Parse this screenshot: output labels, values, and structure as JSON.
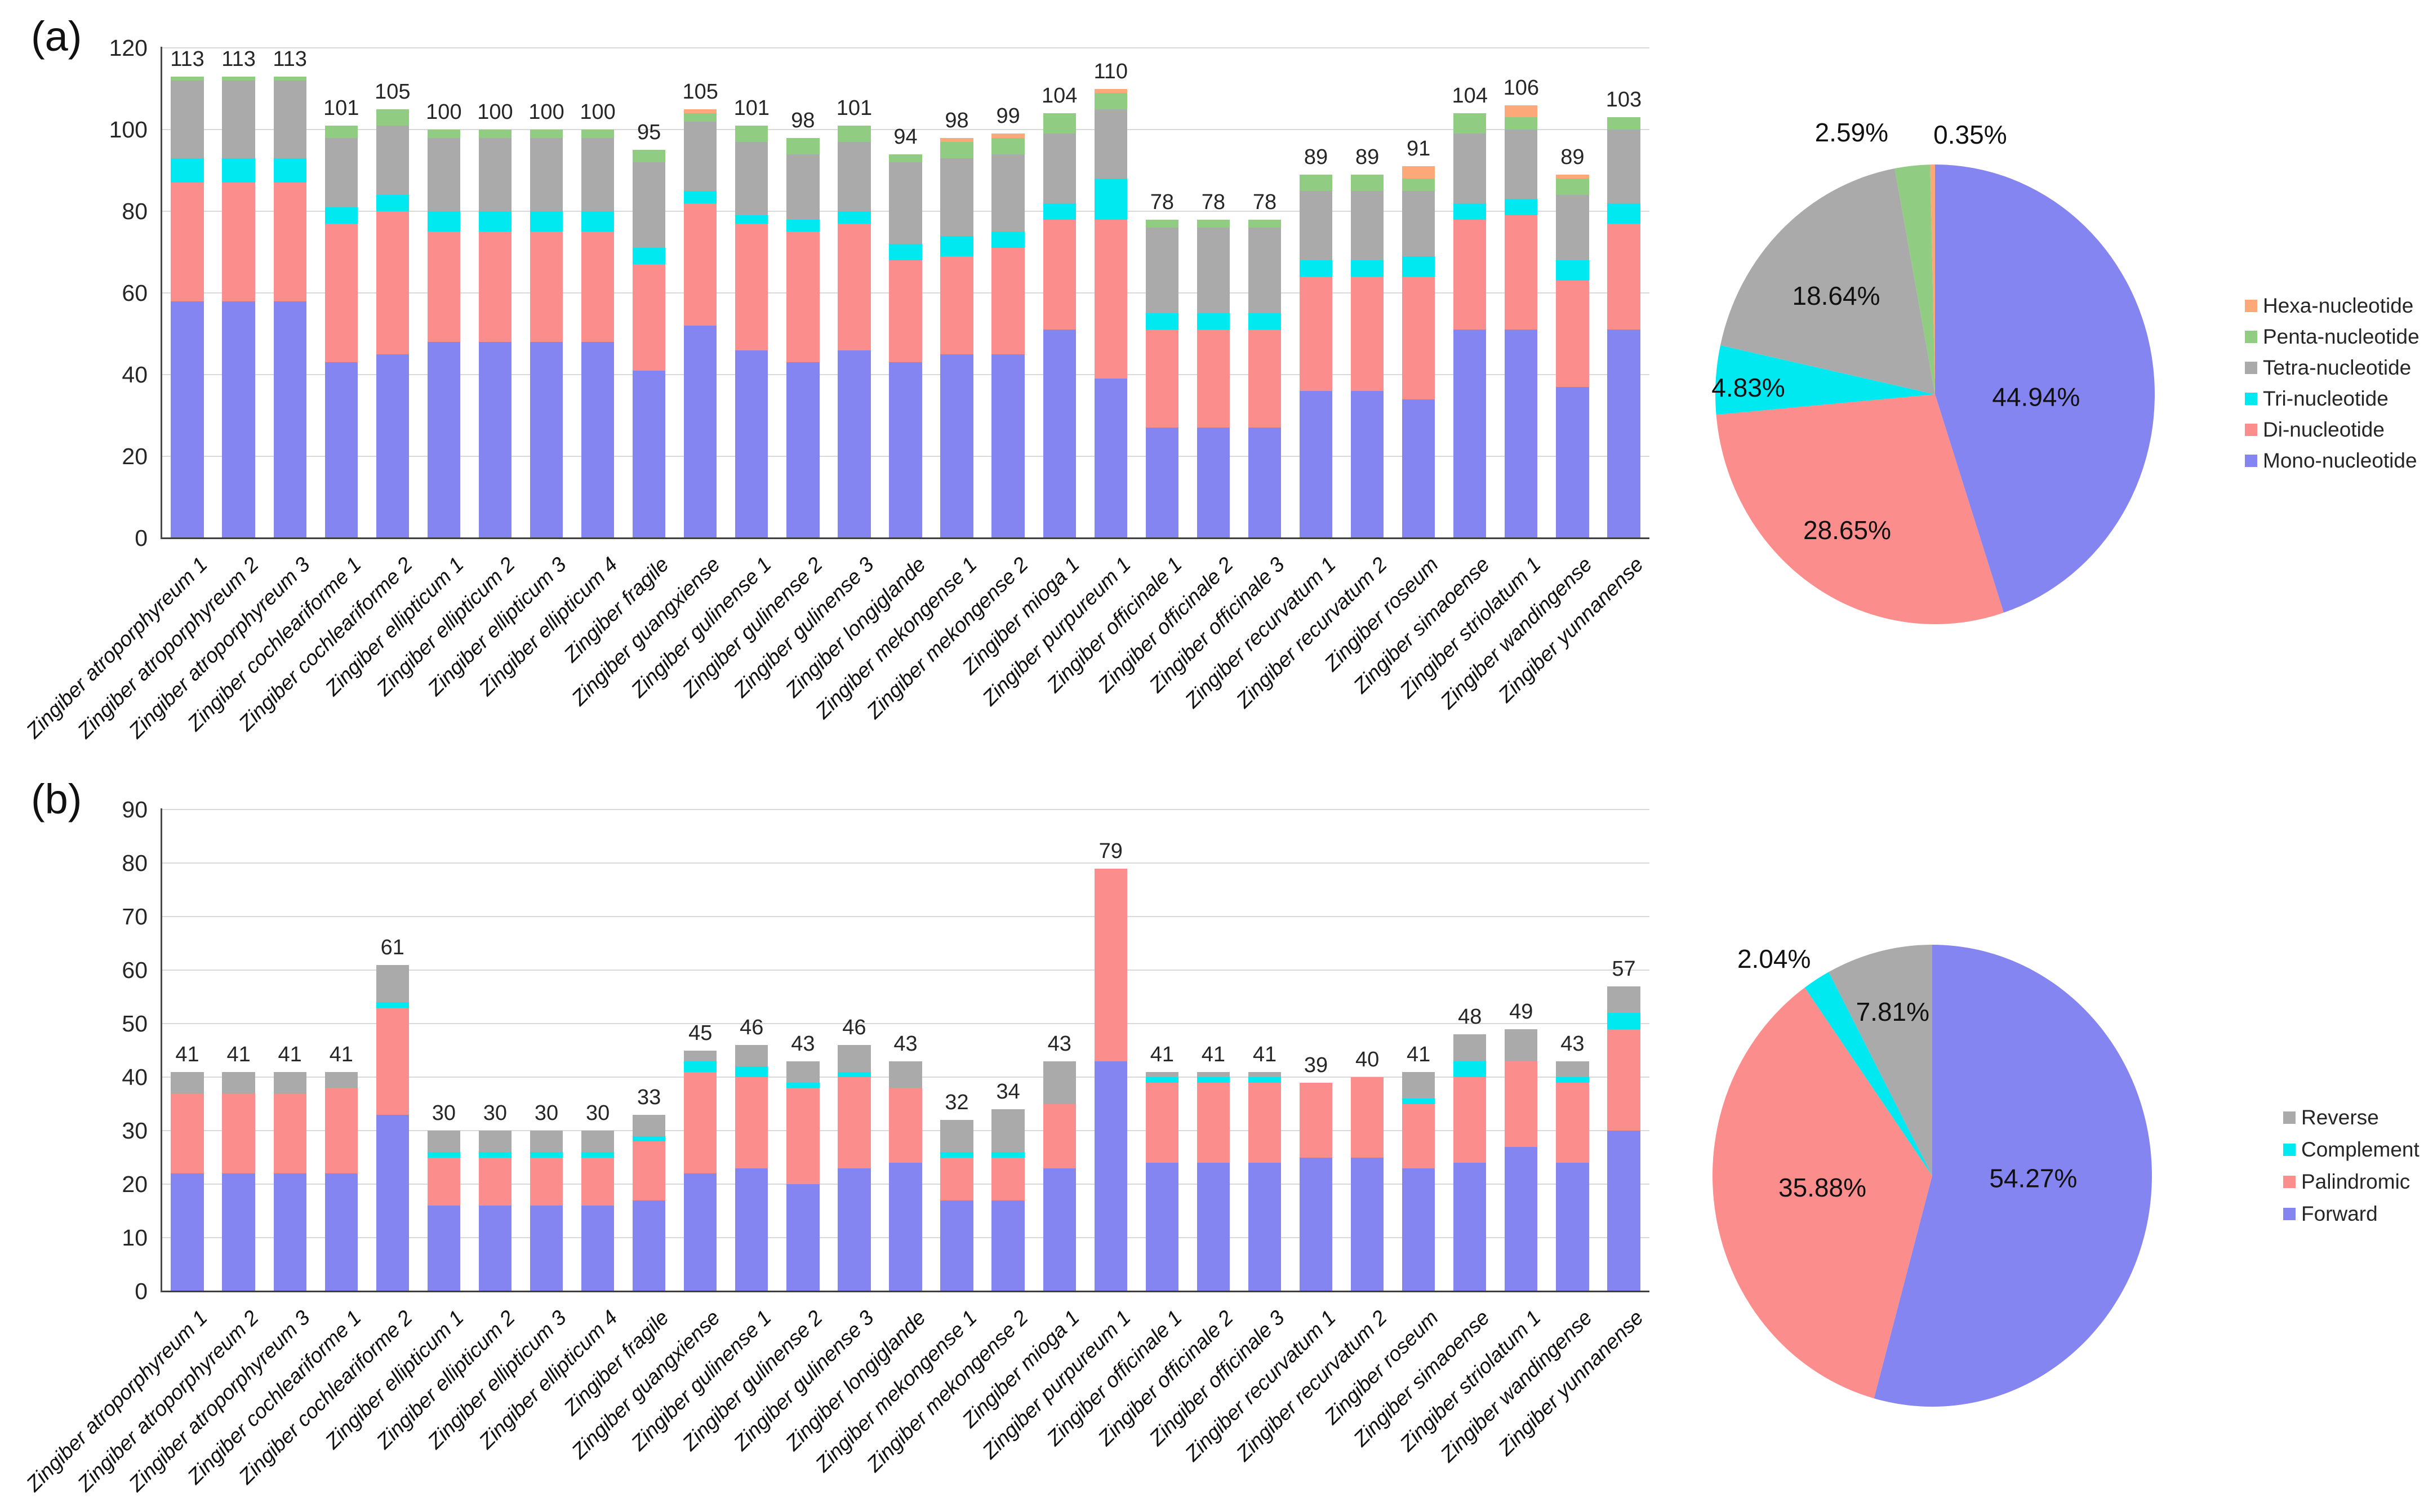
{
  "panel_labels": {
    "a": "(a)",
    "b": "(b)"
  },
  "chart_data": [
    {
      "id": "bar-a",
      "type": "bar",
      "stacked": true,
      "panel": "a",
      "grid": true,
      "ylim": [
        0,
        120
      ],
      "yticks": [
        0,
        20,
        40,
        60,
        80,
        100,
        120
      ],
      "categories": [
        "Zingiber atroporphyreum 1",
        "Zingiber atroporphyreum 2",
        "Zingiber atroporphyreum 3",
        "Zingiber cochleariforme 1",
        "Zingiber cochleariforme 2",
        "Zingiber ellipticum 1",
        "Zingiber ellipticum 2",
        "Zingiber ellipticum 3",
        "Zingiber ellipticum 4",
        "Zingiber fragile",
        "Zingiber guangxiense",
        "Zingiber gulinense 1",
        "Zingiber gulinense 2",
        "Zingiber gulinense 3",
        "Zingiber longiglande",
        "Zingiber mekongense 1",
        "Zingiber mekongense 2",
        "Zingiber mioga 1",
        "Zingiber purpureum 1",
        "Zingiber officinale 1",
        "Zingiber officinale 2",
        "Zingiber officinale 3",
        "Zingiber recurvatum 1",
        "Zingiber recurvatum 2",
        "Zingiber roseum",
        "Zingiber simaoense",
        "Zingiber striolatum 1",
        "Zingiber wandingense",
        "Zingiber yunnanense"
      ],
      "series": [
        {
          "name": "Mono-nucleotide",
          "color": "#8585F2",
          "values": [
            58,
            58,
            58,
            43,
            45,
            48,
            48,
            48,
            48,
            41,
            52,
            46,
            43,
            46,
            43,
            45,
            45,
            51,
            39,
            27,
            27,
            27,
            36,
            36,
            34,
            51,
            51,
            37,
            51
          ]
        },
        {
          "name": "Di-nucleotide",
          "color": "#FB8D8D",
          "values": [
            29,
            29,
            29,
            34,
            35,
            27,
            27,
            27,
            27,
            26,
            30,
            31,
            32,
            31,
            25,
            24,
            26,
            27,
            39,
            24,
            24,
            24,
            28,
            28,
            30,
            27,
            28,
            26,
            26
          ]
        },
        {
          "name": "Tri-nucleotide",
          "color": "#00E8F0",
          "values": [
            6,
            6,
            6,
            4,
            4,
            5,
            5,
            5,
            5,
            4,
            3,
            2,
            3,
            3,
            4,
            5,
            4,
            4,
            10,
            4,
            4,
            4,
            4,
            4,
            5,
            4,
            4,
            5,
            5
          ]
        },
        {
          "name": "Tetra-nucleotide",
          "color": "#AAAAAA",
          "values": [
            19,
            19,
            19,
            17,
            17,
            18,
            18,
            18,
            18,
            21,
            17,
            18,
            16,
            17,
            20,
            19,
            19,
            17,
            17,
            21,
            21,
            21,
            17,
            17,
            16,
            17,
            17,
            16,
            18
          ]
        },
        {
          "name": "Penta-nucleotide",
          "color": "#90CC82",
          "values": [
            1,
            1,
            1,
            3,
            4,
            2,
            2,
            2,
            2,
            3,
            2,
            4,
            4,
            4,
            2,
            4,
            4,
            5,
            4,
            2,
            2,
            2,
            4,
            4,
            3,
            5,
            3,
            4,
            3
          ]
        },
        {
          "name": "Hexa-nucleotide",
          "color": "#FCA878",
          "values": [
            0,
            0,
            0,
            0,
            0,
            0,
            0,
            0,
            0,
            0,
            1,
            0,
            0,
            0,
            0,
            1,
            1,
            0,
            1,
            0,
            0,
            0,
            0,
            0,
            3,
            0,
            3,
            1,
            0
          ]
        }
      ],
      "totals": [
        113,
        113,
        113,
        101,
        105,
        100,
        100,
        100,
        100,
        95,
        105,
        101,
        98,
        101,
        94,
        98,
        99,
        104,
        110,
        78,
        78,
        78,
        89,
        89,
        91,
        104,
        106,
        89,
        103
      ]
    },
    {
      "id": "pie-a",
      "type": "pie",
      "panel": "a",
      "slices": [
        {
          "label": "Mono-nucleotide",
          "pct": 44.94,
          "text": "44.94%",
          "color": "#8585F2",
          "lx": 0.46,
          "ly": 0.02
        },
        {
          "label": "Di-nucleotide",
          "pct": 28.65,
          "text": "28.65%",
          "color": "#FB8D8D",
          "lx": -0.4,
          "ly": 0.6
        },
        {
          "label": "Tri-nucleotide",
          "pct": 4.83,
          "text": "4.83%",
          "color": "#00E8F0",
          "lx": -0.85,
          "ly": -0.02
        },
        {
          "label": "Tetra-nucleotide",
          "pct": 18.64,
          "text": "18.64%",
          "color": "#AAAAAA",
          "lx": -0.45,
          "ly": -0.42
        },
        {
          "label": "Penta-nucleotide",
          "pct": 2.59,
          "text": "2.59%",
          "color": "#90CC82",
          "lx": -0.38,
          "ly": -1.13
        },
        {
          "label": "Hexa-nucleotide",
          "pct": 0.35,
          "text": "0.35%",
          "color": "#FCA878",
          "lx": 0.16,
          "ly": -1.12
        }
      ],
      "legend_position": "right",
      "legend": [
        {
          "label": "Hexa-nucleotide",
          "color": "#FCA878"
        },
        {
          "label": "Penta-nucleotide",
          "color": "#90CC82"
        },
        {
          "label": "Tetra-nucleotide",
          "color": "#AAAAAA"
        },
        {
          "label": "Tri-nucleotide",
          "color": "#00E8F0"
        },
        {
          "label": "Di-nucleotide",
          "color": "#FB8D8D"
        },
        {
          "label": "Mono-nucleotide",
          "color": "#8585F2"
        }
      ]
    },
    {
      "id": "bar-b",
      "type": "bar",
      "stacked": true,
      "panel": "b",
      "grid": true,
      "ylim": [
        0,
        90
      ],
      "yticks": [
        0,
        10,
        20,
        30,
        40,
        50,
        60,
        70,
        80,
        90
      ],
      "categories": [
        "Zingiber atroporphyreum 1",
        "Zingiber atroporphyreum 2",
        "Zingiber atroporphyreum 3",
        "Zingiber cochleariforme 1",
        "Zingiber cochleariforme 2",
        "Zingiber ellipticum 1",
        "Zingiber ellipticum 2",
        "Zingiber ellipticum 3",
        "Zingiber ellipticum 4",
        "Zingiber fragile",
        "Zingiber guangxiense",
        "Zingiber gulinense 1",
        "Zingiber gulinense 2",
        "Zingiber gulinense 3",
        "Zingiber longiglande",
        "Zingiber mekongense 1",
        "Zingiber mekongense 2",
        "Zingiber mioga 1",
        "Zingiber purpureum 1",
        "Zingiber officinale 1",
        "Zingiber officinale 2",
        "Zingiber officinale 3",
        "Zingiber recurvatum 1",
        "Zingiber recurvatum 2",
        "Zingiber roseum",
        "Zingiber simaoense",
        "Zingiber striolatum 1",
        "Zingiber wandingense",
        "Zingiber yunnanense"
      ],
      "series": [
        {
          "name": "Forward",
          "color": "#8585F2",
          "values": [
            22,
            22,
            22,
            22,
            33,
            16,
            16,
            16,
            16,
            17,
            22,
            23,
            20,
            23,
            24,
            17,
            17,
            23,
            43,
            24,
            24,
            24,
            25,
            25,
            23,
            24,
            27,
            24,
            30
          ]
        },
        {
          "name": "Palindromic",
          "color": "#FB8D8D",
          "values": [
            15,
            15,
            15,
            16,
            20,
            9,
            9,
            9,
            9,
            11,
            19,
            17,
            18,
            17,
            14,
            8,
            8,
            12,
            36,
            15,
            15,
            15,
            14,
            15,
            12,
            16,
            16,
            15,
            19
          ]
        },
        {
          "name": "Complement",
          "color": "#00E8F0",
          "values": [
            0,
            0,
            0,
            0,
            1,
            1,
            1,
            1,
            1,
            1,
            2,
            2,
            1,
            1,
            0,
            1,
            1,
            0,
            0,
            1,
            1,
            1,
            0,
            0,
            1,
            3,
            0,
            1,
            3
          ]
        },
        {
          "name": "Reverse",
          "color": "#AAAAAA",
          "values": [
            4,
            4,
            4,
            3,
            7,
            4,
            4,
            4,
            4,
            4,
            2,
            4,
            4,
            5,
            5,
            6,
            8,
            8,
            0,
            1,
            1,
            1,
            0,
            0,
            5,
            5,
            6,
            3,
            5
          ]
        }
      ],
      "totals": [
        41,
        41,
        41,
        41,
        61,
        30,
        30,
        30,
        30,
        33,
        45,
        46,
        43,
        46,
        43,
        32,
        34,
        43,
        79,
        41,
        41,
        41,
        39,
        40,
        41,
        48,
        49,
        43,
        57
      ]
    },
    {
      "id": "pie-b",
      "type": "pie",
      "panel": "b",
      "slices": [
        {
          "label": "Forward",
          "pct": 54.27,
          "text": "54.27%",
          "color": "#8585F2",
          "lx": 0.46,
          "ly": 0.02
        },
        {
          "label": "Palindromic",
          "pct": 35.88,
          "text": "35.88%",
          "color": "#FB8D8D",
          "lx": -0.5,
          "ly": 0.06
        },
        {
          "label": "Complement",
          "pct": 2.04,
          "text": "2.04%",
          "color": "#00E8F0",
          "lx": -0.72,
          "ly": -0.93
        },
        {
          "label": "Reverse",
          "pct": 7.81,
          "text": "7.81%",
          "color": "#AAAAAA",
          "lx": -0.18,
          "ly": -0.7
        }
      ],
      "legend_position": "right",
      "legend": [
        {
          "label": "Reverse",
          "color": "#AAAAAA"
        },
        {
          "label": "Complement",
          "color": "#00E8F0"
        },
        {
          "label": "Palindromic",
          "color": "#FB8D8D"
        },
        {
          "label": "Forward",
          "color": "#8585F2"
        }
      ]
    }
  ]
}
